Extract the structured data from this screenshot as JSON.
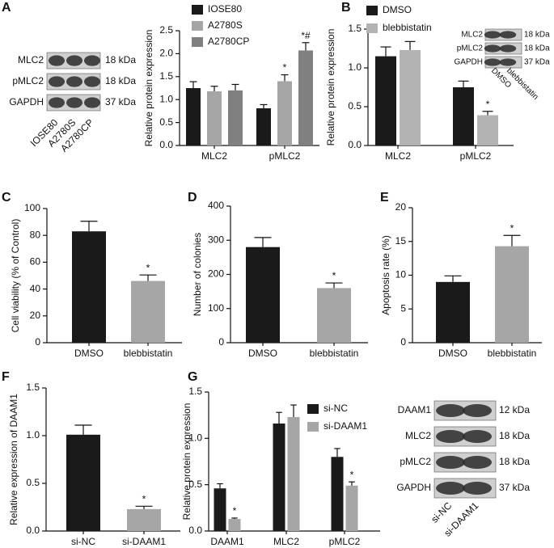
{
  "chart_data": [
    {
      "type": "bar",
      "panel_label": "A",
      "ylabel": "Relative protein expression",
      "categories": [
        "MLC2",
        "pMLC2"
      ],
      "series": [
        {
          "name": "IOSE80",
          "color": "#1a1a1a",
          "values": [
            1.25,
            0.81
          ],
          "errors": [
            0.14,
            0.08
          ],
          "annotations": [
            null,
            null
          ]
        },
        {
          "name": "A2780S",
          "color": "#a6a6a6",
          "values": [
            1.18,
            1.4
          ],
          "errors": [
            0.11,
            0.14
          ],
          "annotations": [
            null,
            "*"
          ]
        },
        {
          "name": "A2780CP",
          "color": "#808080",
          "values": [
            1.2,
            2.07
          ],
          "errors": [
            0.13,
            0.17
          ],
          "annotations": [
            null,
            "*#"
          ]
        }
      ],
      "ylim": [
        0,
        2.5
      ],
      "yticks": [
        {
          "value": 0,
          "label": "0.0"
        },
        0.5,
        {
          "value": 1,
          "label": "1.0"
        },
        1.5,
        {
          "value": 2,
          "label": "2.0"
        },
        2.5
      ],
      "blot": {
        "rows": [
          "MLC2",
          "pMLC2",
          "GAPDH"
        ],
        "sizes": [
          "18 kDa",
          "18 kDa",
          "37 kDa"
        ],
        "lanes": [
          "IOSE80",
          "A2780S",
          "A2780CP"
        ]
      }
    },
    {
      "type": "bar",
      "panel_label": "B",
      "ylabel": "Relative protein expression",
      "categories": [
        "MLC2",
        "pMLC2"
      ],
      "series": [
        {
          "name": "DMSO",
          "color": "#1a1a1a",
          "values": [
            1.15,
            0.75
          ],
          "errors": [
            0.12,
            0.08
          ],
          "annotations": [
            null,
            null
          ]
        },
        {
          "name": "blebbistatin",
          "color": "#b3b3b3",
          "values": [
            1.23,
            0.39
          ],
          "errors": [
            0.11,
            0.05
          ],
          "annotations": [
            null,
            "*"
          ]
        }
      ],
      "ylim": [
        0,
        1.5
      ],
      "yticks": [
        {
          "value": 0,
          "label": "0.0"
        },
        0.5,
        {
          "value": 1,
          "label": "1.0"
        },
        1.5
      ],
      "blot": {
        "rows": [
          "MLC2",
          "pMLC2",
          "GAPDH"
        ],
        "sizes": [
          "18 kDa",
          "18 kDa",
          "37 kDa"
        ],
        "lanes": [
          "DMSO",
          "blebbistatin"
        ]
      }
    },
    {
      "type": "bar",
      "panel_label": "C",
      "ylabel": "Cell viability (% of  Control)",
      "categories": [
        "DMSO",
        "blebbistatin"
      ],
      "values": [
        83,
        46
      ],
      "errors": [
        7.5,
        4.5
      ],
      "annotations": [
        null,
        "*"
      ],
      "colors": [
        "#1a1a1a",
        "#a6a6a6"
      ],
      "ylim": [
        0,
        100
      ],
      "yticks": [
        0,
        20,
        40,
        60,
        80,
        100
      ]
    },
    {
      "type": "bar",
      "panel_label": "D",
      "ylabel": "Number of colonies",
      "categories": [
        "DMSO",
        "blebbistatin"
      ],
      "values": [
        280,
        160
      ],
      "errors": [
        28,
        15
      ],
      "annotations": [
        null,
        "*"
      ],
      "colors": [
        "#1a1a1a",
        "#a6a6a6"
      ],
      "ylim": [
        0,
        400
      ],
      "yticks": [
        0,
        100,
        200,
        300,
        400
      ]
    },
    {
      "type": "bar",
      "panel_label": "E",
      "ylabel": "Apoptosis rate (%)",
      "categories": [
        "DMSO",
        "blebbistatin"
      ],
      "values": [
        9,
        14.3
      ],
      "errors": [
        0.9,
        1.6
      ],
      "annotations": [
        null,
        "*"
      ],
      "colors": [
        "#1a1a1a",
        "#a6a6a6"
      ],
      "ylim": [
        0,
        20
      ],
      "yticks": [
        0,
        5,
        10,
        15,
        20
      ]
    },
    {
      "type": "bar",
      "panel_label": "F",
      "ylabel": "Relative expression of DAAM1",
      "categories": [
        "si-NC",
        "si-DAAM1"
      ],
      "values": [
        1.01,
        0.23
      ],
      "errors": [
        0.1,
        0.03
      ],
      "annotations": [
        null,
        "*"
      ],
      "colors": [
        "#1a1a1a",
        "#a6a6a6"
      ],
      "ylim": [
        0,
        1.5
      ],
      "yticks": [
        {
          "value": 0,
          "label": "0.0"
        },
        0.5,
        {
          "value": 1,
          "label": "1.0"
        },
        1.5
      ]
    },
    {
      "type": "bar",
      "panel_label": "G",
      "ylabel": "Relative protein expression",
      "categories": [
        "DAAM1",
        "MLC2",
        "pMLC2"
      ],
      "series": [
        {
          "name": "si-NC",
          "color": "#1a1a1a",
          "values": [
            0.46,
            1.16,
            0.8
          ],
          "errors": [
            0.05,
            0.12,
            0.09
          ],
          "annotations": [
            null,
            null,
            null
          ]
        },
        {
          "name": "si-DAAM1",
          "color": "#a6a6a6",
          "values": [
            0.13,
            1.23,
            0.49
          ],
          "errors": [
            0.01,
            0.13,
            0.04
          ],
          "annotations": [
            "*",
            null,
            "*"
          ]
        }
      ],
      "ylim": [
        0,
        1.5
      ],
      "yticks": [
        {
          "value": 0,
          "label": "0.0"
        },
        0.5,
        {
          "value": 1,
          "label": "1.0"
        },
        1.5
      ],
      "blot": {
        "rows": [
          "DAAM1",
          "MLC2",
          "pMLC2",
          "GAPDH"
        ],
        "sizes": [
          "12 kDa",
          "18 kDa",
          "18 kDa",
          "37 kDa"
        ],
        "lanes": [
          "si-NC",
          "si-DAAM1"
        ]
      }
    }
  ]
}
